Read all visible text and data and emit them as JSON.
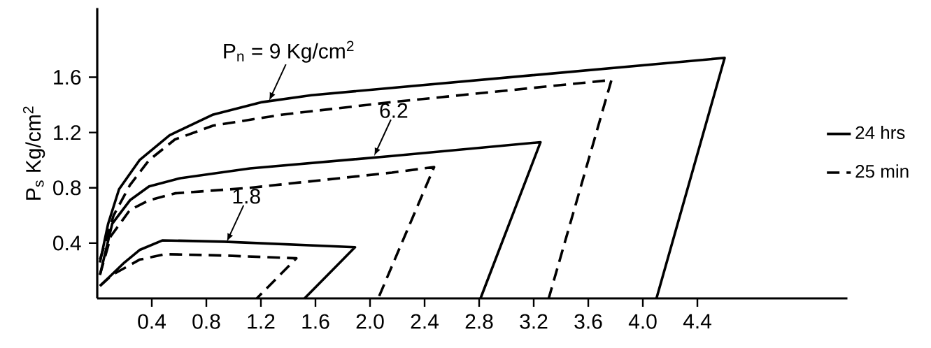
{
  "chart_data": {
    "type": "line",
    "ylabel": "P$_{s}$ Kg/cm$^{2}$",
    "xlim": [
      0,
      5.5
    ],
    "ylim": [
      0,
      2.1
    ],
    "xticks": [
      0.4,
      0.8,
      1.2,
      1.6,
      {
        "value": 2.0,
        "label": "2.0"
      },
      2.4,
      2.8,
      3.2,
      3.6,
      {
        "value": 4.0,
        "label": "4.0"
      },
      4.4
    ],
    "yticks": [
      0.4,
      0.8,
      1.2,
      1.6
    ],
    "legend": "right",
    "marker": "none",
    "annotations": [
      {
        "text": "P$_{n}$ = 9 Kg/cm$^{2}$",
        "x": 1.26,
        "y": 1.43
      },
      {
        "text": "6.2",
        "x": 2.03,
        "y": 1.03
      },
      {
        "text": "1.8",
        "x": 0.95,
        "y": 0.41
      }
    ],
    "series": [
      {
        "name": "24 hrs",
        "color": "#000000",
        "line_style": "solid",
        "x": [
          0.02,
          0.08,
          0.16,
          0.31,
          0.53,
          0.85,
          1.21,
          1.57,
          4.6,
          4.1
        ],
        "values": [
          0.26,
          0.54,
          0.79,
          1.0,
          1.18,
          1.33,
          1.42,
          1.47,
          1.74,
          0
        ]
      },
      {
        "name": "25 min",
        "color": "#000000",
        "line_style": "dashed",
        "x": [
          0.02,
          0.12,
          0.24,
          0.38,
          0.57,
          0.85,
          1.36,
          2.16,
          3.77,
          3.31
        ],
        "values": [
          0.28,
          0.6,
          0.82,
          1.0,
          1.15,
          1.25,
          1.33,
          1.42,
          1.58,
          0
        ]
      },
      {
        "color": "#000000",
        "line_style": "solid",
        "x": [
          0.02,
          0.11,
          0.24,
          0.38,
          0.61,
          1.12,
          2.16,
          3.25,
          2.81
        ],
        "values": [
          0.17,
          0.54,
          0.71,
          0.81,
          0.87,
          0.94,
          1.03,
          1.13,
          0
        ]
      },
      {
        "color": "#000000",
        "line_style": "dashed",
        "x": [
          0.02,
          0.1,
          0.24,
          0.38,
          0.57,
          1.12,
          2.16,
          2.47,
          2.06
        ],
        "values": [
          0.17,
          0.45,
          0.64,
          0.71,
          0.76,
          0.8,
          0.91,
          0.95,
          0
        ]
      },
      {
        "color": "#000000",
        "line_style": "solid",
        "x": [
          0.02,
          0.2,
          0.31,
          0.48,
          0.93,
          1.89,
          1.52
        ],
        "values": [
          0.09,
          0.26,
          0.35,
          0.42,
          0.41,
          0.37,
          0
        ]
      },
      {
        "color": "#000000",
        "line_style": "dashed",
        "x": [
          0.02,
          0.11,
          0.31,
          0.5,
          0.93,
          1.46,
          1.17
        ],
        "values": [
          0.09,
          0.17,
          0.28,
          0.32,
          0.31,
          0.29,
          0
        ]
      }
    ]
  }
}
